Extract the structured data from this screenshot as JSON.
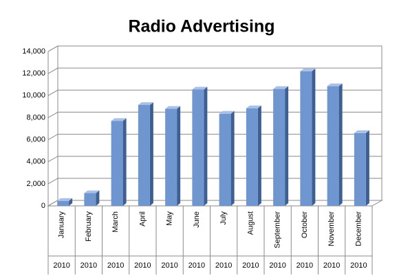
{
  "chart_data": {
    "type": "bar",
    "title": "Radio Advertising",
    "categories": [
      "January",
      "February",
      "March",
      "April",
      "May",
      "June",
      "July",
      "August",
      "September",
      "October",
      "November",
      "December"
    ],
    "category_years": [
      "2010",
      "2010",
      "2010",
      "2010",
      "2010",
      "2010",
      "2010",
      "2010",
      "2010",
      "2010",
      "2010",
      "2010"
    ],
    "values": [
      450,
      1150,
      7700,
      9150,
      8800,
      10550,
      8350,
      8850,
      10600,
      12200,
      10850,
      6600
    ],
    "color": "#7096cf",
    "ylim": [
      0,
      14000
    ],
    "yticks": [
      0,
      {
        "value": 2000,
        "label": "2,000"
      },
      {
        "value": 4000,
        "label": "4,000"
      },
      {
        "value": 6000,
        "label": "6,000"
      },
      {
        "value": 8000,
        "label": "8,000"
      },
      {
        "value": 10000,
        "label": "10,000"
      },
      {
        "value": 12000,
        "label": "12,000"
      },
      {
        "value": 14000,
        "label": "14,000"
      }
    ],
    "grid": true
  }
}
